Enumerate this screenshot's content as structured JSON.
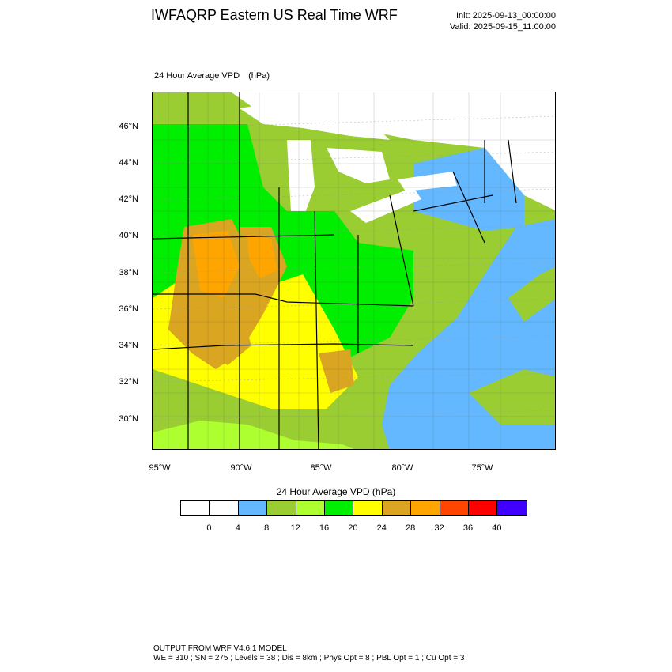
{
  "header": {
    "title": "IWFAQRP Eastern US Real Time WRF",
    "init": "Init: 2025-09-13_00:00:00",
    "valid": "Valid: 2025-09-15_11:00:00"
  },
  "plot": {
    "field_name": "24 Hour Average VPD",
    "units": "(hPa)",
    "lat_labels": [
      "46°N",
      "44°N",
      "42°N",
      "40°N",
      "38°N",
      "36°N",
      "34°N",
      "32°N",
      "30°N"
    ],
    "lon_labels": [
      "95°W",
      "90°W",
      "85°W",
      "80°W",
      "75°W"
    ]
  },
  "colorbar": {
    "title": "24 Hour Average VPD  (hPa)",
    "colors": [
      "#ffffff",
      "#ffffff",
      "#63b8ff",
      "#9acd32",
      "#adff2f",
      "#00ee00",
      "#ffff00",
      "#daa520",
      "#ffa500",
      "#ff4500",
      "#ff0000",
      "#4000ff"
    ],
    "labels": [
      "0",
      "4",
      "8",
      "12",
      "16",
      "20",
      "24",
      "28",
      "32",
      "36",
      "40"
    ]
  },
  "footer": {
    "line1": "OUTPUT FROM WRF V4.6.1 MODEL",
    "line2": "WE = 310 ; SN = 275 ; Levels = 38 ; Dis = 8km ; Phys Opt = 8 ; PBL Opt = 1 ; Cu Opt = 3"
  }
}
